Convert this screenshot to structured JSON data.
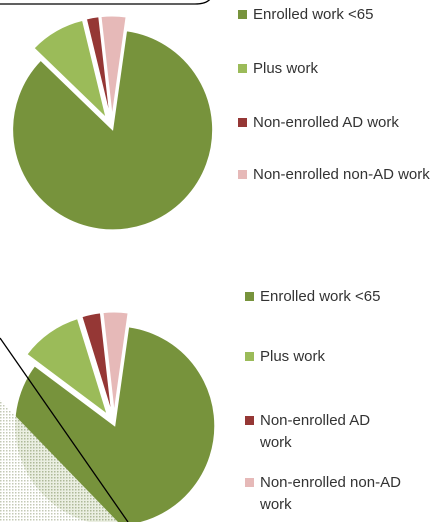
{
  "chart_data": [
    {
      "type": "pie",
      "categories": [
        "Enrolled work <65",
        "Plus work",
        "Non-enrolled AD work",
        "Non-enrolled non-AD work"
      ],
      "values": [
        85,
        9,
        2,
        4
      ],
      "colors": [
        "#77933c",
        "#9bbb59",
        "#953735",
        "#e6b9b8"
      ]
    },
    {
      "type": "pie",
      "categories": [
        "Enrolled work <65",
        "Plus work",
        "Non-enrolled AD work",
        "Non-enrolled non-AD work"
      ],
      "values": [
        83,
        10,
        3,
        4
      ],
      "colors": [
        "#77933c",
        "#9bbb59",
        "#953735",
        "#e6b9b8"
      ]
    }
  ]
}
